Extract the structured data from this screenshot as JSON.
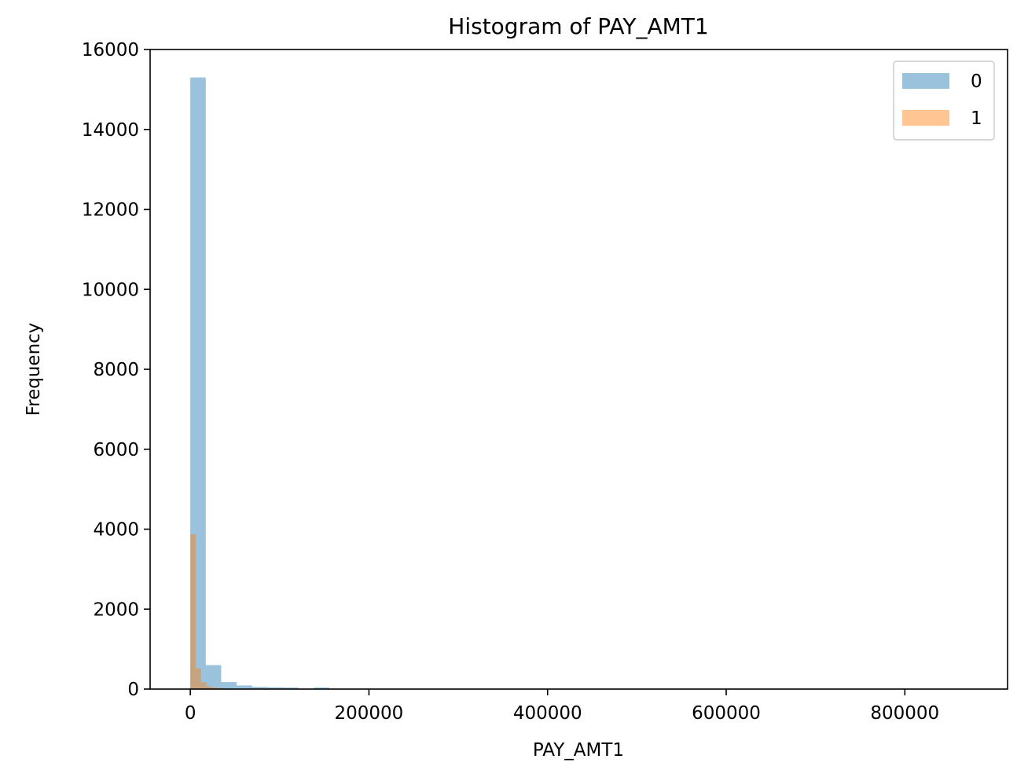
{
  "chart_data": {
    "type": "bar",
    "title": "Histogram of PAY_AMT1",
    "xlabel": "PAY_AMT1",
    "ylabel": "Frequency",
    "xlim": [
      -45000,
      915000
    ],
    "ylim": [
      0,
      16000
    ],
    "xticks": [
      "0",
      "200000",
      "400000",
      "600000",
      "800000"
    ],
    "xtick_values": [
      0,
      200000,
      400000,
      600000,
      800000
    ],
    "yticks": [
      "0",
      "2000",
      "4000",
      "6000",
      "8000",
      "10000",
      "12000",
      "14000",
      "16000"
    ],
    "ytick_values": [
      0,
      2000,
      4000,
      6000,
      8000,
      10000,
      12000,
      14000,
      16000
    ],
    "grid": false,
    "legend_position": "top-right",
    "series": [
      {
        "name": "0",
        "color": "#1f77b4",
        "opacity": 0.45,
        "bin_width": 17300,
        "bins": [
          {
            "x": 0,
            "value": 15300
          },
          {
            "x": 17300,
            "value": 600
          },
          {
            "x": 34600,
            "value": 175
          },
          {
            "x": 51900,
            "value": 90
          },
          {
            "x": 69200,
            "value": 55
          },
          {
            "x": 86500,
            "value": 45
          },
          {
            "x": 103800,
            "value": 40
          },
          {
            "x": 121100,
            "value": 12
          },
          {
            "x": 138400,
            "value": 40
          },
          {
            "x": 155700,
            "value": 10
          },
          {
            "x": 173000,
            "value": 8
          },
          {
            "x": 190300,
            "value": 5
          },
          {
            "x": 207600,
            "value": 4
          },
          {
            "x": 224900,
            "value": 3
          },
          {
            "x": 242200,
            "value": 2
          },
          {
            "x": 259500,
            "value": 2
          },
          {
            "x": 294100,
            "value": 1
          },
          {
            "x": 328700,
            "value": 1
          },
          {
            "x": 415200,
            "value": 1
          },
          {
            "x": 855000,
            "value": 1
          }
        ]
      },
      {
        "name": "1",
        "color": "#ff7f0e",
        "opacity": 0.45,
        "bin_width": 6000,
        "bins": [
          {
            "x": 0,
            "value": 3870
          },
          {
            "x": 6000,
            "value": 520
          },
          {
            "x": 12000,
            "value": 170
          },
          {
            "x": 18000,
            "value": 70
          },
          {
            "x": 24000,
            "value": 40
          },
          {
            "x": 30000,
            "value": 25
          },
          {
            "x": 36000,
            "value": 15
          },
          {
            "x": 42000,
            "value": 10
          },
          {
            "x": 48000,
            "value": 8
          },
          {
            "x": 54000,
            "value": 5
          },
          {
            "x": 60000,
            "value": 4
          },
          {
            "x": 66000,
            "value": 3
          },
          {
            "x": 72000,
            "value": 2
          },
          {
            "x": 84000,
            "value": 2
          },
          {
            "x": 102000,
            "value": 1
          },
          {
            "x": 120000,
            "value": 1
          }
        ]
      }
    ]
  }
}
